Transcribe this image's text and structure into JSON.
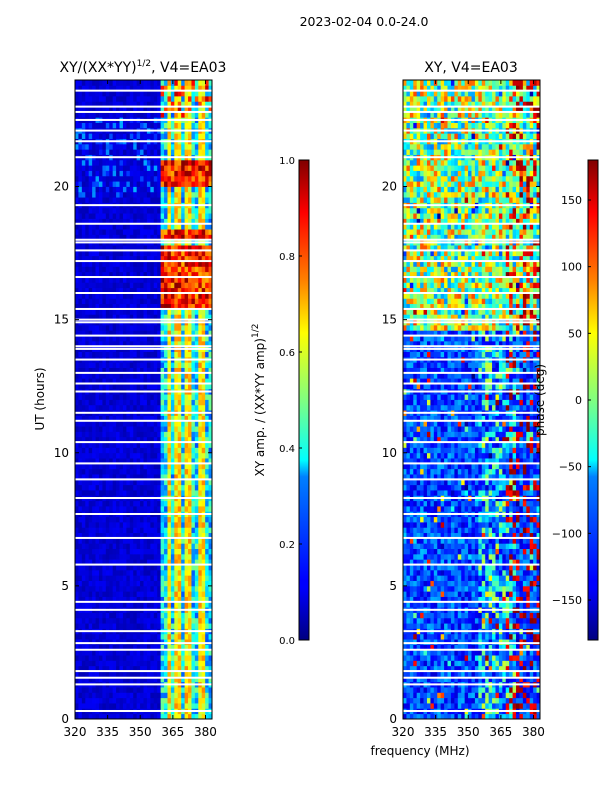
{
  "figure_title": "2023-02-04 0.0-24.0",
  "xlabel_shared": "frequency (MHz)",
  "chart_data": [
    {
      "type": "heatmap",
      "title": "XY/(XX*YY)",
      "title_sup": "1/2",
      "title_suffix": ", V4=EA03",
      "xlabel": "frequency (MHz)",
      "ylabel": "UT (hours)",
      "xlim": [
        320,
        383
      ],
      "ylim": [
        0,
        24
      ],
      "xticks": [
        320,
        335,
        350,
        365,
        380
      ],
      "yticks": [
        0,
        5,
        10,
        15,
        20
      ],
      "colorbar": {
        "label": "XY amp. / (XX*YY amp)",
        "label_sup": "1/2",
        "range": [
          0.0,
          1.0
        ],
        "ticks": [
          "0.0",
          "0.2",
          "0.4",
          "0.6",
          "0.8",
          "1.0"
        ],
        "colormap": "jet"
      },
      "features": {
        "low_band_mhz": [
          320,
          360
        ],
        "low_band_level": 0.05,
        "high_band_mhz": [
          360,
          383
        ],
        "high_band_level": 0.35,
        "bright_channels_mhz": [
          363,
          367,
          372,
          378
        ],
        "bright_channel_level": 0.55,
        "hot_intervals_ut": [
          [
            15.5,
            17.8
          ],
          [
            18.0,
            18.4
          ],
          [
            20.0,
            21.0
          ]
        ],
        "hot_level": 0.85
      }
    },
    {
      "type": "heatmap",
      "title": "XY, V4=EA03",
      "xlabel": "frequency (MHz)",
      "ylabel": "",
      "xlim": [
        320,
        383
      ],
      "ylim": [
        0,
        24
      ],
      "xticks": [
        320,
        335,
        350,
        365,
        380
      ],
      "yticks": [
        0,
        5,
        10,
        15,
        20
      ],
      "colorbar": {
        "label": "phase (deg)",
        "range": [
          -180,
          180
        ],
        "ticks": [
          "−150",
          "−100",
          "−50",
          "0",
          "50",
          "100",
          "150"
        ],
        "tick_values": [
          -150,
          -100,
          -50,
          0,
          50,
          100,
          150
        ],
        "colormap": "jet"
      },
      "features": {
        "value_range": [
          -180,
          180
        ],
        "dominant_phase": -110,
        "upper_phase": 10
      }
    }
  ],
  "gaps_ut": [
    0.3,
    1.3,
    1.55,
    1.8,
    2.6,
    2.85,
    3.3,
    4.1,
    4.4,
    5.8,
    6.8,
    7.7,
    8.3,
    9.0,
    9.6,
    10.4,
    11.2,
    11.5,
    12.3,
    12.6,
    13.0,
    13.5,
    13.9,
    14.0,
    14.4,
    14.9,
    15.0,
    15.4,
    16.0,
    16.6,
    17.2,
    17.6,
    17.9,
    18.0,
    18.6,
    19.3,
    21.1,
    21.7,
    22.1,
    22.5,
    22.8,
    23.0,
    23.6
  ]
}
